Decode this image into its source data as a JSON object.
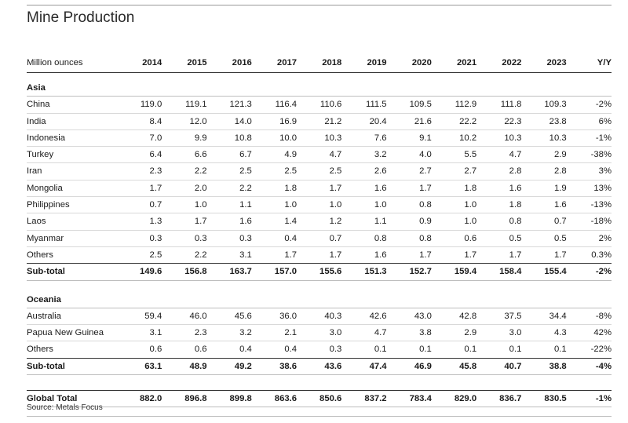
{
  "title": "Mine Production",
  "unit_label": "Million ounces",
  "years": [
    "2014",
    "2015",
    "2016",
    "2017",
    "2018",
    "2019",
    "2020",
    "2021",
    "2022",
    "2023"
  ],
  "yy_label": "Y/Y",
  "asia": {
    "label": "Asia",
    "rows": [
      {
        "name": "China",
        "values": [
          "119.0",
          "119.1",
          "121.3",
          "116.4",
          "110.6",
          "111.5",
          "109.5",
          "112.9",
          "111.8",
          "109.3"
        ],
        "yy": "-2%"
      },
      {
        "name": "India",
        "values": [
          "8.4",
          "12.0",
          "14.0",
          "16.9",
          "21.2",
          "20.4",
          "21.6",
          "22.2",
          "22.3",
          "23.8"
        ],
        "yy": "6%"
      },
      {
        "name": "Indonesia",
        "values": [
          "7.0",
          "9.9",
          "10.8",
          "10.0",
          "10.3",
          "7.6",
          "9.1",
          "10.2",
          "10.3",
          "10.3"
        ],
        "yy": "-1%"
      },
      {
        "name": "Turkey",
        "values": [
          "6.4",
          "6.6",
          "6.7",
          "4.9",
          "4.7",
          "3.2",
          "4.0",
          "5.5",
          "4.7",
          "2.9"
        ],
        "yy": "-38%"
      },
      {
        "name": "Iran",
        "values": [
          "2.3",
          "2.2",
          "2.5",
          "2.5",
          "2.5",
          "2.6",
          "2.7",
          "2.7",
          "2.8",
          "2.8"
        ],
        "yy": "3%"
      },
      {
        "name": "Mongolia",
        "values": [
          "1.7",
          "2.0",
          "2.2",
          "1.8",
          "1.7",
          "1.6",
          "1.7",
          "1.8",
          "1.6",
          "1.9"
        ],
        "yy": "13%"
      },
      {
        "name": "Philippines",
        "values": [
          "0.7",
          "1.0",
          "1.1",
          "1.0",
          "1.0",
          "1.0",
          "0.8",
          "1.0",
          "1.8",
          "1.6"
        ],
        "yy": "-13%"
      },
      {
        "name": "Laos",
        "values": [
          "1.3",
          "1.7",
          "1.6",
          "1.4",
          "1.2",
          "1.1",
          "0.9",
          "1.0",
          "0.8",
          "0.7"
        ],
        "yy": "-18%"
      },
      {
        "name": "Myanmar",
        "values": [
          "0.3",
          "0.3",
          "0.3",
          "0.4",
          "0.7",
          "0.8",
          "0.8",
          "0.6",
          "0.5",
          "0.5"
        ],
        "yy": "2%"
      },
      {
        "name": "Others",
        "values": [
          "2.5",
          "2.2",
          "3.1",
          "1.7",
          "1.7",
          "1.6",
          "1.7",
          "1.7",
          "1.7",
          "1.7"
        ],
        "yy": "0.3%"
      }
    ],
    "subtotal": {
      "name": "Sub-total",
      "values": [
        "149.6",
        "156.8",
        "163.7",
        "157.0",
        "155.6",
        "151.3",
        "152.7",
        "159.4",
        "158.4",
        "155.4"
      ],
      "yy": "-2%"
    }
  },
  "oceania": {
    "label": "Oceania",
    "rows": [
      {
        "name": "Australia",
        "values": [
          "59.4",
          "46.0",
          "45.6",
          "36.0",
          "40.3",
          "42.6",
          "43.0",
          "42.8",
          "37.5",
          "34.4"
        ],
        "yy": "-8%"
      },
      {
        "name": "Papua New Guinea",
        "values": [
          "3.1",
          "2.3",
          "3.2",
          "2.1",
          "3.0",
          "4.7",
          "3.8",
          "2.9",
          "3.0",
          "4.3"
        ],
        "yy": "42%"
      },
      {
        "name": "Others",
        "values": [
          "0.6",
          "0.6",
          "0.4",
          "0.4",
          "0.3",
          "0.1",
          "0.1",
          "0.1",
          "0.1",
          "0.1"
        ],
        "yy": "-22%"
      }
    ],
    "subtotal": {
      "name": "Sub-total",
      "values": [
        "63.1",
        "48.9",
        "49.2",
        "38.6",
        "43.6",
        "47.4",
        "46.9",
        "45.8",
        "40.7",
        "38.8"
      ],
      "yy": "-4%"
    }
  },
  "global_total": {
    "name": "Global Total",
    "values": [
      "882.0",
      "896.8",
      "899.8",
      "863.6",
      "850.6",
      "837.2",
      "783.4",
      "829.0",
      "836.7",
      "830.5"
    ],
    "yy": "-1%"
  },
  "source": "Source: Metals Focus"
}
